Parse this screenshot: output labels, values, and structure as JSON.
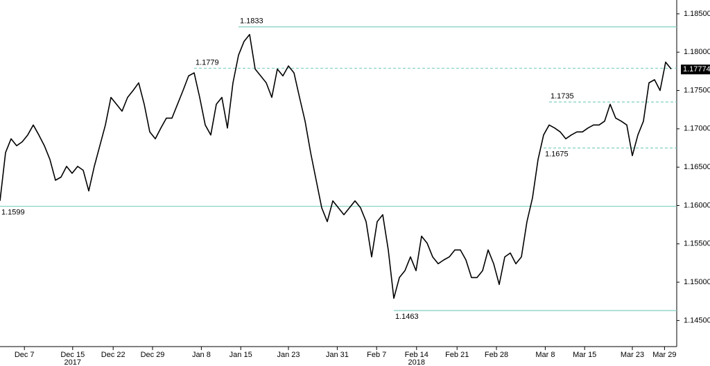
{
  "chart_data": {
    "type": "line",
    "color": "#000000",
    "level_color": "#7fcfc0",
    "x": [
      0,
      1,
      2,
      3,
      4,
      5,
      6,
      7,
      8,
      9,
      10,
      11,
      12,
      13,
      14,
      15,
      16,
      17,
      18,
      19,
      20,
      21,
      22,
      23,
      24,
      25,
      26,
      27,
      28,
      29,
      30,
      31,
      32,
      33,
      34,
      35,
      36,
      37,
      38,
      39,
      40,
      41,
      42,
      43,
      44,
      45,
      46,
      47,
      48,
      49,
      50,
      51,
      52,
      53,
      54,
      55,
      56,
      57,
      58,
      59,
      60,
      61,
      62,
      63,
      64,
      65,
      66,
      67,
      68,
      69,
      70,
      71,
      72,
      73,
      74,
      75,
      76,
      77,
      78,
      79,
      80,
      81,
      82,
      83,
      84,
      85,
      86,
      87,
      88,
      89,
      90,
      91,
      92,
      93,
      94,
      95,
      96,
      97,
      98,
      99,
      100,
      101,
      102,
      103,
      104,
      105,
      106,
      107,
      108,
      109,
      110,
      111,
      112,
      113,
      114,
      115,
      116,
      117,
      118,
      119,
      120,
      121
    ],
    "values": [
      1.1606,
      1.1669,
      1.1687,
      1.1678,
      1.1683,
      1.1692,
      1.1705,
      1.1692,
      1.1678,
      1.166,
      1.1633,
      1.1637,
      1.1651,
      1.1642,
      1.1651,
      1.1646,
      1.1619,
      1.1651,
      1.1678,
      1.1705,
      1.1741,
      1.1732,
      1.1723,
      1.1741,
      1.175,
      1.176,
      1.1732,
      1.1696,
      1.1687,
      1.1701,
      1.1714,
      1.1714,
      1.1732,
      1.175,
      1.1769,
      1.1773,
      1.1741,
      1.1705,
      1.1692,
      1.1732,
      1.1741,
      1.1701,
      1.176,
      1.1796,
      1.1814,
      1.1823,
      1.1778,
      1.1769,
      1.176,
      1.1741,
      1.1778,
      1.1769,
      1.1782,
      1.1773,
      1.1741,
      1.171,
      1.1669,
      1.1633,
      1.1597,
      1.1579,
      1.1606,
      1.1597,
      1.1588,
      1.1597,
      1.1606,
      1.1597,
      1.1579,
      1.1533,
      1.1579,
      1.1588,
      1.1542,
      1.1479,
      1.1506,
      1.1515,
      1.1533,
      1.1515,
      1.156,
      1.1551,
      1.1533,
      1.1524,
      1.1529,
      1.1533,
      1.1542,
      1.1542,
      1.1529,
      1.1506,
      1.1506,
      1.1515,
      1.1542,
      1.1524,
      1.1497,
      1.1533,
      1.1538,
      1.1524,
      1.1533,
      1.1579,
      1.161,
      1.166,
      1.1692,
      1.1705,
      1.1701,
      1.1696,
      1.1687,
      1.1692,
      1.1696,
      1.1696,
      1.1701,
      1.1705,
      1.1705,
      1.171,
      1.1732,
      1.1714,
      1.171,
      1.1705,
      1.1665,
      1.1692,
      1.171,
      1.176,
      1.1764,
      1.175,
      1.1787,
      1.1778
    ],
    "xlim": [
      0,
      122
    ],
    "ylim": [
      1.1416,
      1.1868
    ],
    "xticks": [
      {
        "value": 4.4,
        "label": "Dec 7"
      },
      {
        "value": 13.1,
        "label": "Dec 15"
      },
      {
        "value": 20.4,
        "label": "Dec 22"
      },
      {
        "value": 27.5,
        "label": "Dec 29"
      },
      {
        "value": 36.3,
        "label": "Jan 8"
      },
      {
        "value": 43.4,
        "label": "Jan 15"
      },
      {
        "value": 52,
        "label": "Jan 23"
      },
      {
        "value": 60.8,
        "label": "Jan 31"
      },
      {
        "value": 67.9,
        "label": "Feb 7"
      },
      {
        "value": 75.1,
        "label": "Feb 14"
      },
      {
        "value": 82.4,
        "label": "Feb 21"
      },
      {
        "value": 89.5,
        "label": "Feb 28"
      },
      {
        "value": 98.3,
        "label": "Mar 8"
      },
      {
        "value": 105.4,
        "label": "Mar 15"
      },
      {
        "value": 114,
        "label": "Mar 23"
      },
      {
        "value": 119.8,
        "label": "Mar 29"
      }
    ],
    "year_labels": [
      {
        "value": 13.1,
        "label": "2017"
      },
      {
        "value": 75.1,
        "label": "2018"
      }
    ],
    "yticks": [
      {
        "value": 1.145,
        "label": "1.14500"
      },
      {
        "value": 1.15,
        "label": "1.15000"
      },
      {
        "value": 1.155,
        "label": "1.15500"
      },
      {
        "value": 1.16,
        "label": "1.16000"
      },
      {
        "value": 1.165,
        "label": "1.16500"
      },
      {
        "value": 1.17,
        "label": "1.17000"
      },
      {
        "value": 1.175,
        "label": "1.17500"
      },
      {
        "value": 1.18,
        "label": "1.18000"
      },
      {
        "value": 1.185,
        "label": "1.18500"
      }
    ],
    "levels": [
      {
        "value": 1.1833,
        "style": "solid",
        "start": 43,
        "label_position": "above"
      },
      {
        "value": 1.1779,
        "style": "dashed",
        "start": 35,
        "label_position": "above"
      },
      {
        "value": 1.1735,
        "style": "dashed",
        "start": 99,
        "label_position": "above"
      },
      {
        "value": 1.1675,
        "style": "dashed",
        "start": 98,
        "label_position": "below"
      },
      {
        "value": 1.1599,
        "style": "solid",
        "start": 0,
        "label_position": "below"
      },
      {
        "value": 1.1463,
        "style": "solid",
        "start": 71,
        "label_position": "below"
      }
    ],
    "last_price": 1.17774
  }
}
